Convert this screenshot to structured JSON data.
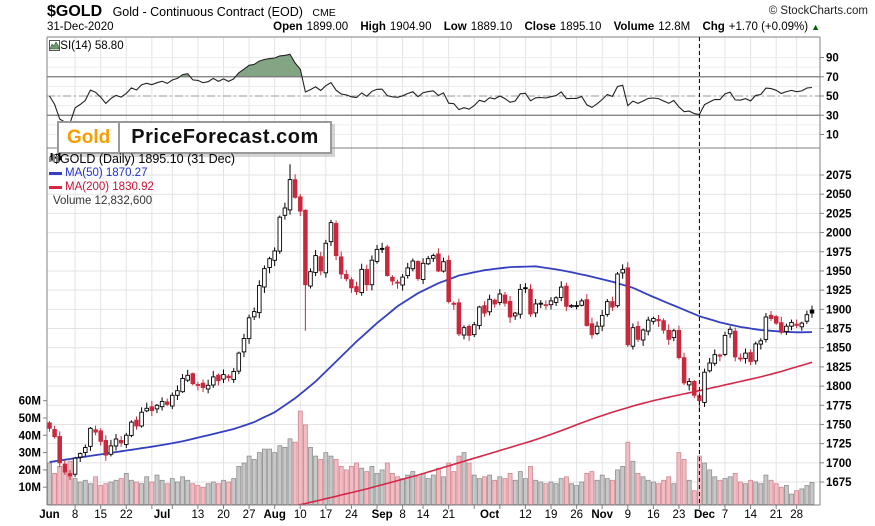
{
  "header": {
    "symbol": "$GOLD",
    "name": "Gold - Continuous Contract (EOD)",
    "exchange": "CME",
    "copyright": "© StockCharts.com",
    "date": "31-Dec-2020",
    "quote": {
      "open_label": "Open",
      "open": "1899.00",
      "high_label": "High",
      "high": "1904.90",
      "low_label": "Low",
      "low": "1889.10",
      "close_label": "Close",
      "close": "1895.10",
      "volume_label": "Volume",
      "volume": "12.8M",
      "chg_label": "Chg",
      "chg": "+1.70 (+0.09%)",
      "chg_arrow": "▲",
      "chg_direction": "up"
    }
  },
  "logo": {
    "part1": "Gold",
    "part2": "PriceForecast.com"
  },
  "rsi_panel": {
    "label": "RSI(14) 58.80"
  },
  "main_panel": {
    "legend_title": "$GOLD (Daily) 1895.10 (31 Dec)",
    "ma50_label": "MA(50) 1870.27",
    "ma200_label": "MA(200) 1830.92",
    "volume_label": "Volume 12,832,600"
  },
  "colors": {
    "candle_up": "#000000",
    "candle_up_fill": "#ffffff",
    "candle_down": "#c9283d",
    "vol_up_fill": "#c8c8c8",
    "vol_up_stroke": "#8f8f8f",
    "vol_down_fill": "#f3bcc3",
    "vol_down_stroke": "#cc8891",
    "ma50": "#3340c0",
    "ma200": "#d62747",
    "rsi_line": "#222222",
    "rsi_fill": "#84a584",
    "grid": "#e3e3e3",
    "frame": "#808080",
    "strong_line": "#777777",
    "chg_green": "#006600",
    "logo_orange": "#f79d00"
  },
  "chart_data": {
    "type": "candlestick+volume+rsi",
    "title": "$GOLD Gold - Continuous Contract (EOD) CME, Daily, Jun-Dec 2020",
    "legend_position": "top-left",
    "grid": true,
    "price_axis": {
      "min": 1675,
      "max": 2075,
      "step": 25,
      "ticks": [
        1675,
        1700,
        1725,
        1750,
        1775,
        1800,
        1825,
        1850,
        1875,
        1900,
        1925,
        1950,
        1975,
        2000,
        2025,
        2050,
        2075
      ]
    },
    "volume_axis": {
      "unit": "M",
      "ticks": [
        10,
        20,
        30,
        40,
        50,
        60
      ],
      "tick_labels": [
        "10M",
        "20M",
        "30M",
        "40M",
        "50M",
        "60M"
      ]
    },
    "rsi_axis": {
      "ticks": [
        10,
        30,
        50,
        70,
        90
      ],
      "overbought": 70,
      "oversold": 30,
      "mid": 50,
      "last_value": 58.8
    },
    "x_labels": [
      [
        "Jun",
        0,
        1
      ],
      [
        "8",
        5,
        0
      ],
      [
        "15",
        10,
        0
      ],
      [
        "22",
        15,
        0
      ],
      [
        "Jul",
        22,
        1
      ],
      [
        "13",
        29,
        0
      ],
      [
        "20",
        34,
        0
      ],
      [
        "27",
        39,
        0
      ],
      [
        "Aug",
        44,
        1
      ],
      [
        "10",
        49,
        0
      ],
      [
        "17",
        54,
        0
      ],
      [
        "24",
        59,
        0
      ],
      [
        "Sep",
        65,
        1
      ],
      [
        "8",
        69,
        0
      ],
      [
        "14",
        73,
        0
      ],
      [
        "21",
        78,
        0
      ],
      [
        "Oct",
        86,
        1
      ],
      [
        "12",
        93,
        0
      ],
      [
        "19",
        98,
        0
      ],
      [
        "26",
        103,
        0
      ],
      [
        "Nov",
        108,
        1
      ],
      [
        "9",
        113,
        0
      ],
      [
        "16",
        118,
        0
      ],
      [
        "23",
        123,
        0
      ],
      [
        "Dec",
        128,
        1
      ],
      [
        "7",
        132,
        0
      ],
      [
        "14",
        137,
        0
      ],
      [
        "21",
        142,
        0
      ],
      [
        "28",
        146,
        0
      ]
    ],
    "grid_days": [
      5,
      10,
      15,
      20,
      24,
      29,
      34,
      39,
      44,
      49,
      54,
      59,
      64,
      69,
      73,
      78,
      83,
      88,
      93,
      98,
      103,
      108,
      113,
      118,
      123,
      127,
      132,
      137,
      142,
      146
    ],
    "closes": [
      1745,
      1734,
      1700,
      1688,
      1683,
      1706,
      1712,
      1720,
      1745,
      1740,
      1728,
      1710,
      1722,
      1731,
      1726,
      1736,
      1753,
      1748,
      1766,
      1771,
      1768,
      1775,
      1780,
      1776,
      1788,
      1794,
      1810,
      1814,
      1803,
      1802,
      1798,
      1801,
      1812,
      1807,
      1815,
      1811,
      1819,
      1843,
      1862,
      1889,
      1897,
      1931,
      1953,
      1966,
      1976,
      2020,
      2032,
      2069,
      2046,
      2028,
      1932,
      1949,
      1970,
      1950,
      1986,
      2013,
      1970,
      1946,
      1940,
      1928,
      1923,
      1952,
      1932,
      1964,
      1978,
      1979,
      1944,
      1937,
      1934,
      1942,
      1954,
      1963,
      1940,
      1960,
      1966,
      1970,
      1950,
      1962,
      1910,
      1907,
      1868,
      1876,
      1866,
      1880,
      1903,
      1895,
      1913,
      1907,
      1920,
      1908,
      1890,
      1895,
      1926,
      1928,
      1894,
      1907,
      1908,
      1906,
      1911,
      1915,
      1929,
      1904,
      1905,
      1905,
      1911,
      1879,
      1867,
      1878,
      1892,
      1910,
      1903,
      1946,
      1952,
      1854,
      1876,
      1861,
      1873,
      1886,
      1888,
      1885,
      1873,
      1861,
      1872,
      1837,
      1804,
      1806,
      1788,
      1781,
      1818,
      1830,
      1841,
      1840,
      1866,
      1874,
      1838,
      1836,
      1843,
      1832,
      1855,
      1859,
      1890,
      1888,
      1882,
      1870,
      1878,
      1883,
      1879,
      1882,
      1893,
      1895.1
    ],
    "volumes_m": [
      24,
      18,
      22,
      19,
      25,
      15,
      13,
      14,
      12,
      16,
      11,
      12,
      13,
      14,
      15,
      18,
      14,
      13,
      12,
      16,
      13,
      17,
      14,
      12,
      15,
      13,
      16,
      14,
      12,
      11,
      10,
      12,
      13,
      12,
      14,
      13,
      15,
      22,
      24,
      28,
      26,
      30,
      32,
      32,
      30,
      34,
      33,
      38,
      36,
      54,
      46,
      33,
      28,
      26,
      30,
      28,
      26,
      22,
      20,
      22,
      24,
      21,
      19,
      22,
      18,
      20,
      24,
      18,
      16,
      15,
      17,
      19,
      16,
      18,
      15,
      17,
      21,
      16,
      24,
      19,
      28,
      30,
      24,
      17,
      15,
      16,
      17,
      14,
      16,
      15,
      18,
      14,
      19,
      15,
      22,
      14,
      13,
      12,
      13,
      12,
      15,
      16,
      12,
      11,
      13,
      18,
      19,
      14,
      17,
      15,
      14,
      20,
      22,
      36,
      25,
      18,
      16,
      14,
      13,
      12,
      14,
      16,
      12,
      30,
      26,
      14,
      8,
      28,
      24,
      20,
      16,
      14,
      15,
      16,
      18,
      13,
      12,
      14,
      13,
      12,
      17,
      14,
      12,
      10,
      11,
      6,
      8,
      9,
      11,
      12.8
    ],
    "last_ohlc": {
      "open": 1899.0,
      "high": 1904.9,
      "low": 1889.1,
      "close": 1895.1
    },
    "wick_overrides": {
      "47": {
        "high": 2089
      },
      "50": {
        "low": 1872
      },
      "127": {
        "low": 1767
      }
    },
    "ma50_anchors": [
      [
        0,
        1701
      ],
      [
        5,
        1706
      ],
      [
        10,
        1711
      ],
      [
        15,
        1716
      ],
      [
        21,
        1722
      ],
      [
        26,
        1728
      ],
      [
        31,
        1736
      ],
      [
        36,
        1744
      ],
      [
        40,
        1753
      ],
      [
        44,
        1766
      ],
      [
        48,
        1784
      ],
      [
        52,
        1806
      ],
      [
        56,
        1832
      ],
      [
        60,
        1858
      ],
      [
        64,
        1882
      ],
      [
        68,
        1904
      ],
      [
        72,
        1921
      ],
      [
        76,
        1934
      ],
      [
        80,
        1944
      ],
      [
        85,
        1951
      ],
      [
        90,
        1955
      ],
      [
        95,
        1956
      ],
      [
        100,
        1951
      ],
      [
        105,
        1944
      ],
      [
        110,
        1936
      ],
      [
        114,
        1928
      ],
      [
        118,
        1916
      ],
      [
        122,
        1905
      ],
      [
        127,
        1891
      ],
      [
        131,
        1883
      ],
      [
        135,
        1877
      ],
      [
        139,
        1873
      ],
      [
        143,
        1871
      ],
      [
        146,
        1870
      ],
      [
        149,
        1870.3
      ]
    ],
    "ma200_anchors": [
      [
        40,
        1632
      ],
      [
        44,
        1638
      ],
      [
        48,
        1644
      ],
      [
        52,
        1650
      ],
      [
        57,
        1658
      ],
      [
        62,
        1666
      ],
      [
        67,
        1675
      ],
      [
        72,
        1684
      ],
      [
        77,
        1694
      ],
      [
        82,
        1704
      ],
      [
        86,
        1712
      ],
      [
        90,
        1720
      ],
      [
        94,
        1728
      ],
      [
        98,
        1737
      ],
      [
        102,
        1747
      ],
      [
        106,
        1757
      ],
      [
        110,
        1766
      ],
      [
        114,
        1774
      ],
      [
        118,
        1781
      ],
      [
        122,
        1787
      ],
      [
        127,
        1794
      ],
      [
        131,
        1800
      ],
      [
        135,
        1806
      ],
      [
        139,
        1812
      ],
      [
        143,
        1819
      ],
      [
        146,
        1825
      ],
      [
        149,
        1830.9
      ]
    ],
    "dashed_vline_day": 127
  }
}
